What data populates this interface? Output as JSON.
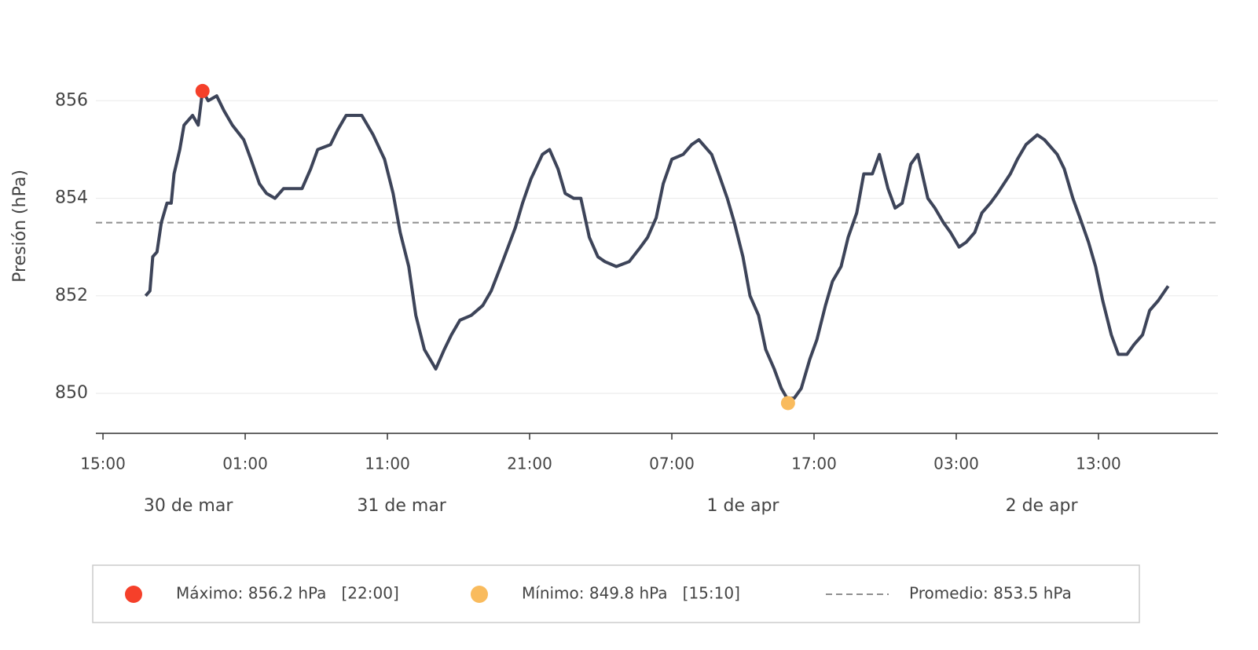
{
  "chart_data": {
    "type": "line",
    "ylabel": "Presión (hPa)",
    "color": "#3d4459",
    "x": [
      3.0,
      3.3,
      3.5,
      3.8,
      4.1,
      4.5,
      4.8,
      5.0,
      5.4,
      5.7,
      6.3,
      6.7,
      7.0,
      7.4,
      8.0,
      8.5,
      9.1,
      9.9,
      10.4,
      11.0,
      11.5,
      12.1,
      12.7,
      13.5,
      14.0,
      14.6,
      15.1,
      16.0,
      16.5,
      17.1,
      18.2,
      19.0,
      19.8,
      20.4,
      20.9,
      21.5,
      22.0,
      22.6,
      23.4,
      24.0,
      24.5,
      25.1,
      25.9,
      26.7,
      27.3,
      28.1,
      29.0,
      29.5,
      30.1,
      30.9,
      31.4,
      32.0,
      32.5,
      33.1,
      33.6,
      34.2,
      34.8,
      35.3,
      36.1,
      37.0,
      37.8,
      38.3,
      38.9,
      39.4,
      40.0,
      40.8,
      41.4,
      41.9,
      42.8,
      43.3,
      43.9,
      44.4,
      45.0,
      45.5,
      46.1,
      46.6,
      47.2,
      47.7,
      48.1,
      48.6,
      49.1,
      49.7,
      50.2,
      50.8,
      51.3,
      51.9,
      52.4,
      53.0,
      53.5,
      54.1,
      54.6,
      55.2,
      55.7,
      56.2,
      56.8,
      57.3,
      58.0,
      58.5,
      59.1,
      59.6,
      60.2,
      60.7,
      61.3,
      61.8,
      62.4,
      62.9,
      63.8,
      64.3,
      64.9,
      65.7,
      66.2,
      67.1,
      67.6,
      68.2,
      68.7,
      69.3,
      69.8,
      70.3,
      70.9,
      71.4,
      72.0,
      72.5,
      73.1,
      73.6,
      74.2,
      74.9
    ],
    "values": [
      852.0,
      852.1,
      852.8,
      852.9,
      853.5,
      853.9,
      853.9,
      854.5,
      855.0,
      855.5,
      855.7,
      855.5,
      856.2,
      856.0,
      856.1,
      855.8,
      855.5,
      855.2,
      854.8,
      854.3,
      854.1,
      854.0,
      854.2,
      854.2,
      854.2,
      854.6,
      855.0,
      855.1,
      855.4,
      855.7,
      855.7,
      855.3,
      854.8,
      854.1,
      853.3,
      852.6,
      851.6,
      850.9,
      850.5,
      850.9,
      851.2,
      851.5,
      851.6,
      851.8,
      852.1,
      852.7,
      853.4,
      853.9,
      854.4,
      854.9,
      855.0,
      854.6,
      854.1,
      854.0,
      854.0,
      853.2,
      852.8,
      852.7,
      852.6,
      852.7,
      853.0,
      853.2,
      853.6,
      854.3,
      854.8,
      854.9,
      855.1,
      855.2,
      854.9,
      854.5,
      854.0,
      853.5,
      852.8,
      852.0,
      851.6,
      850.9,
      850.5,
      850.1,
      849.9,
      849.9,
      850.1,
      850.7,
      851.1,
      851.8,
      852.3,
      852.6,
      853.2,
      853.7,
      854.5,
      854.5,
      854.9,
      854.2,
      853.8,
      853.9,
      854.7,
      854.9,
      854.0,
      853.8,
      853.5,
      853.3,
      853.0,
      853.1,
      853.3,
      853.7,
      853.9,
      854.1,
      854.5,
      854.8,
      855.1,
      855.3,
      855.2,
      854.9,
      854.6,
      854.0,
      853.6,
      853.1,
      852.6,
      851.9,
      851.2,
      850.8,
      850.8,
      851.0,
      851.2,
      851.7,
      851.9,
      852.2
    ],
    "xlim": [
      -0.5,
      78.4
    ],
    "xticks": [
      {
        "value": 0,
        "label": "15:00"
      },
      {
        "value": 10,
        "label": "01:00"
      },
      {
        "value": 20,
        "label": "11:00"
      },
      {
        "value": 30,
        "label": "21:00"
      },
      {
        "value": 40,
        "label": "07:00"
      },
      {
        "value": 50,
        "label": "17:00"
      },
      {
        "value": 60,
        "label": "03:00"
      },
      {
        "value": 70,
        "label": "13:00"
      }
    ],
    "date_labels": [
      {
        "value": 6,
        "label": "30 de mar"
      },
      {
        "value": 21,
        "label": "31 de mar"
      },
      {
        "value": 45,
        "label": "1 de apr"
      },
      {
        "value": 66,
        "label": "2 de apr"
      }
    ],
    "ylim": [
      849.18,
      857.1
    ],
    "yticks": [
      850,
      852,
      854,
      856
    ],
    "grid": true,
    "markers": [
      {
        "name": "Máximo: 856.2 hPa   [22:00]",
        "color": "#f5402a",
        "x": 7.0,
        "y": 856.2
      },
      {
        "name": "Mínimo: 849.8 hPa   [15:10]",
        "color": "#f9bb5d",
        "x": 48.17,
        "y": 849.8
      }
    ],
    "reference_line": {
      "name": "Promedio: 853.5 hPa",
      "value": 853.5,
      "color": "#8f8f8f"
    }
  }
}
